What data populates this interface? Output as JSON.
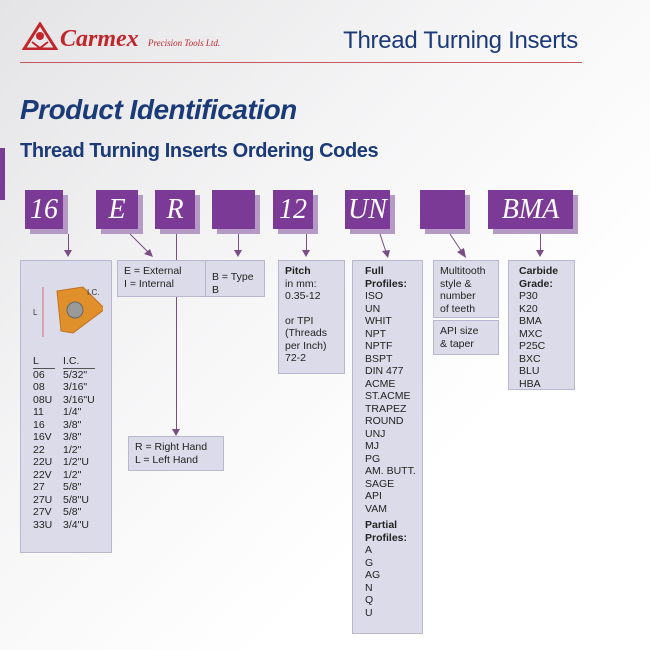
{
  "header": {
    "logo_brand": "Carmex",
    "logo_sub": "Precision Tools Ltd.",
    "title": "Thread Turning Inserts"
  },
  "page": {
    "title": "Product Identification",
    "subtitle": "Thread Turning Inserts Ordering Codes"
  },
  "code_boxes": [
    "16",
    "E",
    "R",
    "",
    "12",
    "UN",
    "",
    "BMA"
  ],
  "size_panel": {
    "diagram_label_l": "L",
    "diagram_label_ic": "I.C.",
    "col_l": "L",
    "col_ic": "I.C.",
    "rows": [
      [
        "06",
        "5/32\""
      ],
      [
        "08",
        "3/16\""
      ],
      [
        "08U",
        "3/16\"U"
      ],
      [
        "11",
        "1/4\""
      ],
      [
        "16",
        "3/8\""
      ],
      [
        "16V",
        "3/8\""
      ],
      [
        "22",
        "1/2\""
      ],
      [
        "22U",
        "1/2\"U"
      ],
      [
        "22V",
        "1/2\""
      ],
      [
        "27",
        "5/8\""
      ],
      [
        "27U",
        "5/8\"U"
      ],
      [
        "27V",
        "5/8\""
      ],
      [
        "33U",
        "3/4\"U"
      ]
    ]
  },
  "type_panel": {
    "line1": "E = External",
    "line2": "I = Internal"
  },
  "hand_panel": {
    "line1": "R = Right Hand",
    "line2": "L = Left Hand"
  },
  "b_panel": {
    "text": "B = Type B"
  },
  "pitch_panel": {
    "heading": "Pitch",
    "l1": "in mm:",
    "l2": "0.35-12",
    "l3": "or TPI",
    "l4": "(Threads",
    "l5": "per Inch)",
    "l6": "72-2"
  },
  "profile_panel": {
    "full_heading": "Full Profiles:",
    "full": [
      "ISO",
      "UN",
      "WHIT",
      "NPT",
      "NPTF",
      "BSPT",
      "DIN 477",
      "ACME",
      "ST.ACME",
      "TRAPEZ",
      "ROUND",
      "UNJ",
      "MJ",
      "PG",
      "AM. BUTT.",
      "SAGE",
      "API",
      "VAM"
    ],
    "partial_heading": "Partial Profiles:",
    "partial": [
      "A",
      "G",
      "AG",
      "N",
      "Q",
      "U"
    ]
  },
  "multitooth_panel": {
    "l1": "Multitooth",
    "l2": "style &",
    "l3": "number",
    "l4": "of teeth"
  },
  "api_panel": {
    "l1": "API size",
    "l2": "& taper"
  },
  "grade_panel": {
    "heading": "Carbide Grade:",
    "grades": [
      "P30",
      "K20",
      "BMA",
      "MXC",
      "P25C",
      "BXC",
      "BLU",
      "HBA"
    ]
  },
  "colors": {
    "purple": "#7b3a96",
    "navy": "#1b3a78",
    "red": "#c0262b",
    "panel": "#dcdbe9"
  }
}
